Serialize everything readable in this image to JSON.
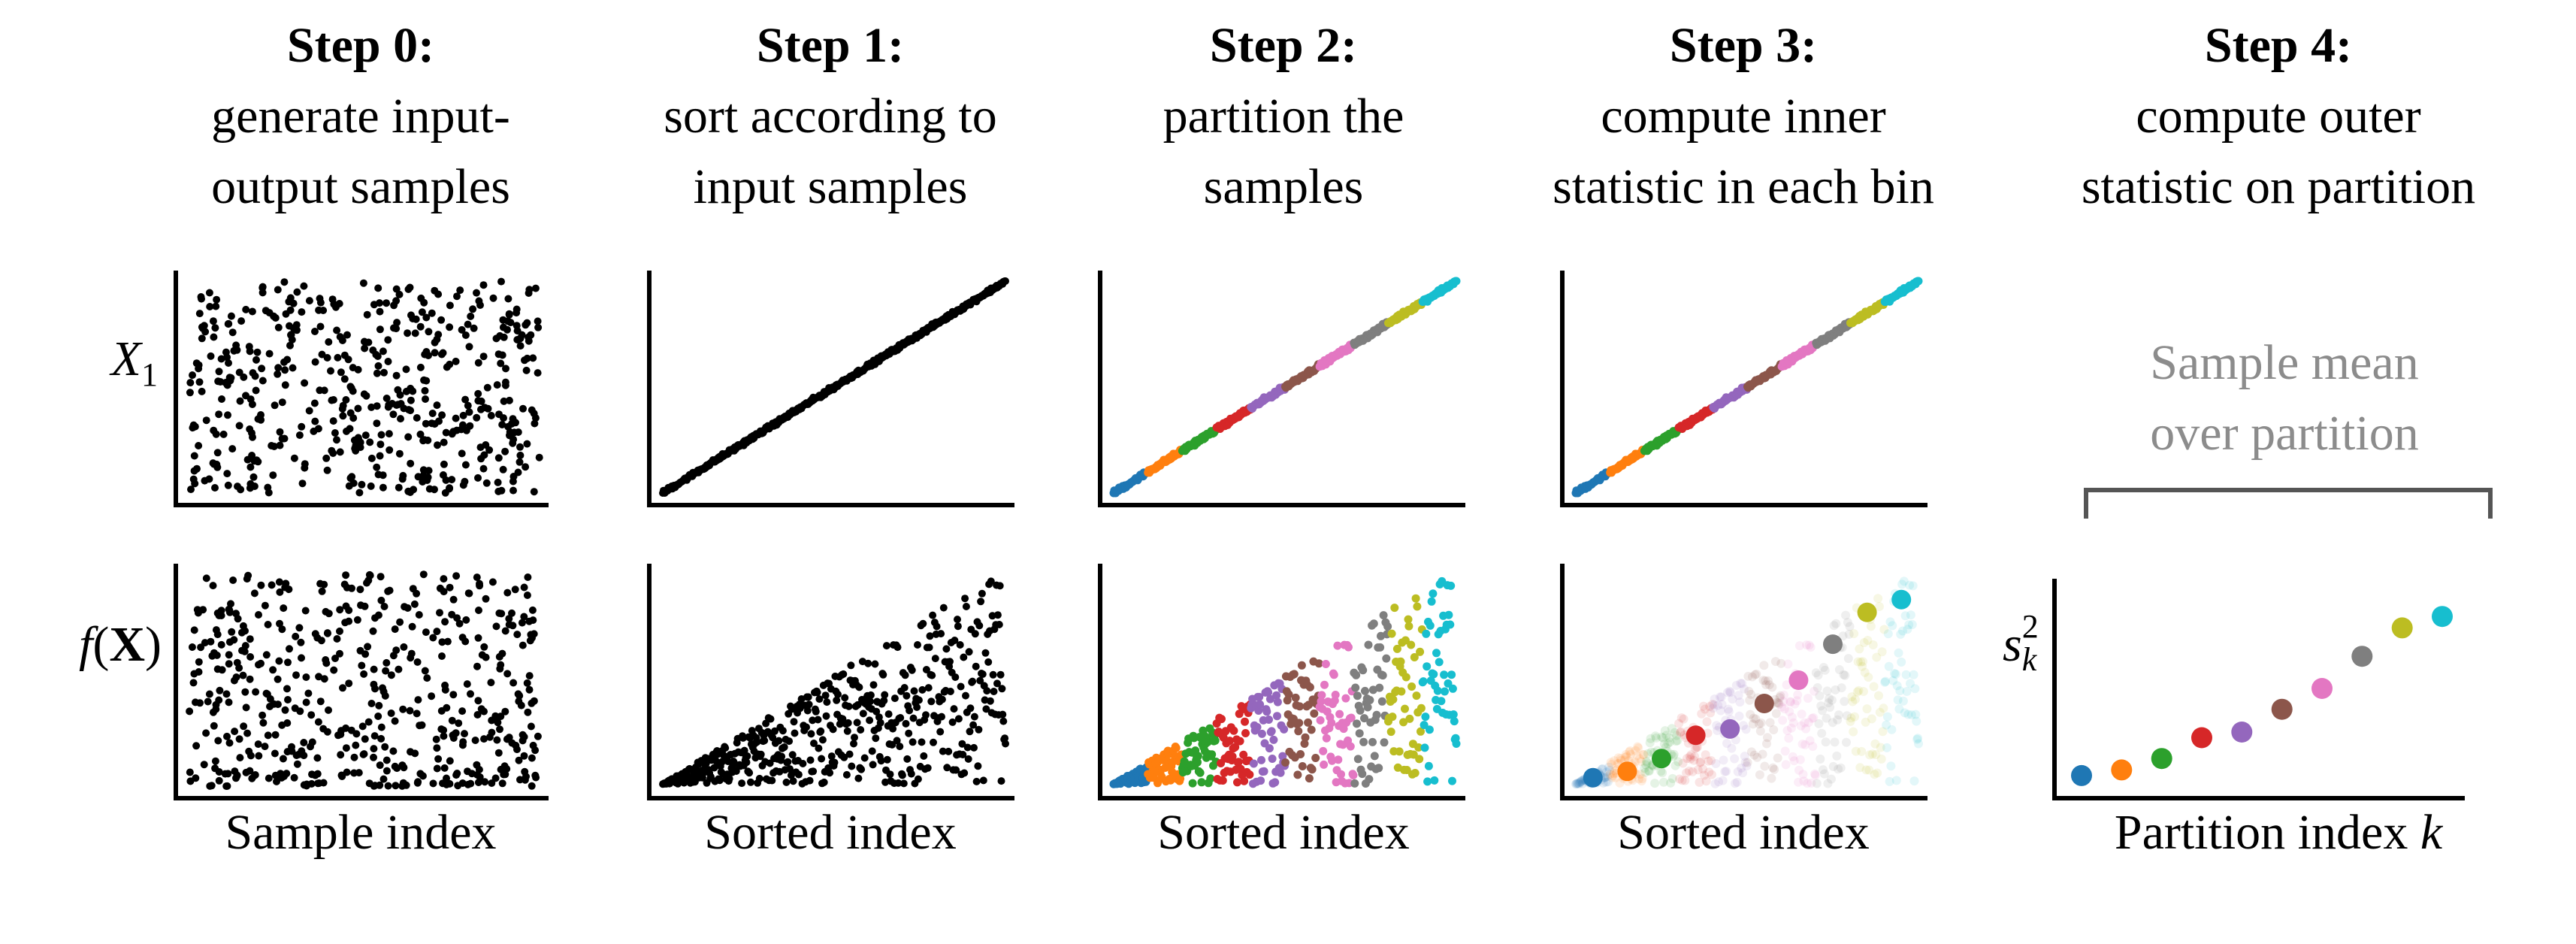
{
  "steps": [
    {
      "title": "Step 0:",
      "line1": "generate input-",
      "line2": "output samples"
    },
    {
      "title": "Step 1:",
      "line1": "sort according to",
      "line2": "input samples"
    },
    {
      "title": "Step 2:",
      "line1": "partition the",
      "line2": "samples"
    },
    {
      "title": "Step 3:",
      "line1": "compute inner",
      "line2": "statistic in each bin"
    },
    {
      "title": "Step 4:",
      "line1": "compute outer",
      "line2": "statistic on partition"
    }
  ],
  "row_labels": {
    "top": "X",
    "top_sub": "1",
    "bottom_f": "f",
    "bottom_X": "X"
  },
  "x_labels": {
    "col0": "Sample index",
    "col1": "Sorted index",
    "col2": "Sorted index",
    "col3": "Sorted index",
    "col4": "Partition index",
    "col4_var": "k"
  },
  "step4_note": {
    "line1": "Sample mean",
    "line2": "over partition"
  },
  "step4_ylabel": {
    "base": "s",
    "sup": "2",
    "sub": "k"
  },
  "chart_data": {
    "type": "scatter",
    "partition_colors": [
      "#1f77b4",
      "#ff7f0e",
      "#2ca02c",
      "#d62728",
      "#9467bd",
      "#8c564b",
      "#e377c2",
      "#7f7f7f",
      "#bcbd22",
      "#17becf"
    ],
    "partition_index": [
      1,
      2,
      3,
      4,
      5,
      6,
      7,
      8,
      9,
      10
    ],
    "inner_statistic": [
      0.04,
      0.07,
      0.13,
      0.24,
      0.27,
      0.39,
      0.5,
      0.67,
      0.82,
      0.88
    ],
    "samples_per_panel": 500,
    "series": [
      {
        "name": "input X1 (unsorted)",
        "pattern": "uniform"
      },
      {
        "name": "output f(X) (unsorted)",
        "pattern": "uniform-skew"
      },
      {
        "name": "sorted X1",
        "pattern": "increasing-line"
      },
      {
        "name": "sorted f(X)",
        "pattern": "heteroscedastic-triangle"
      }
    ]
  }
}
